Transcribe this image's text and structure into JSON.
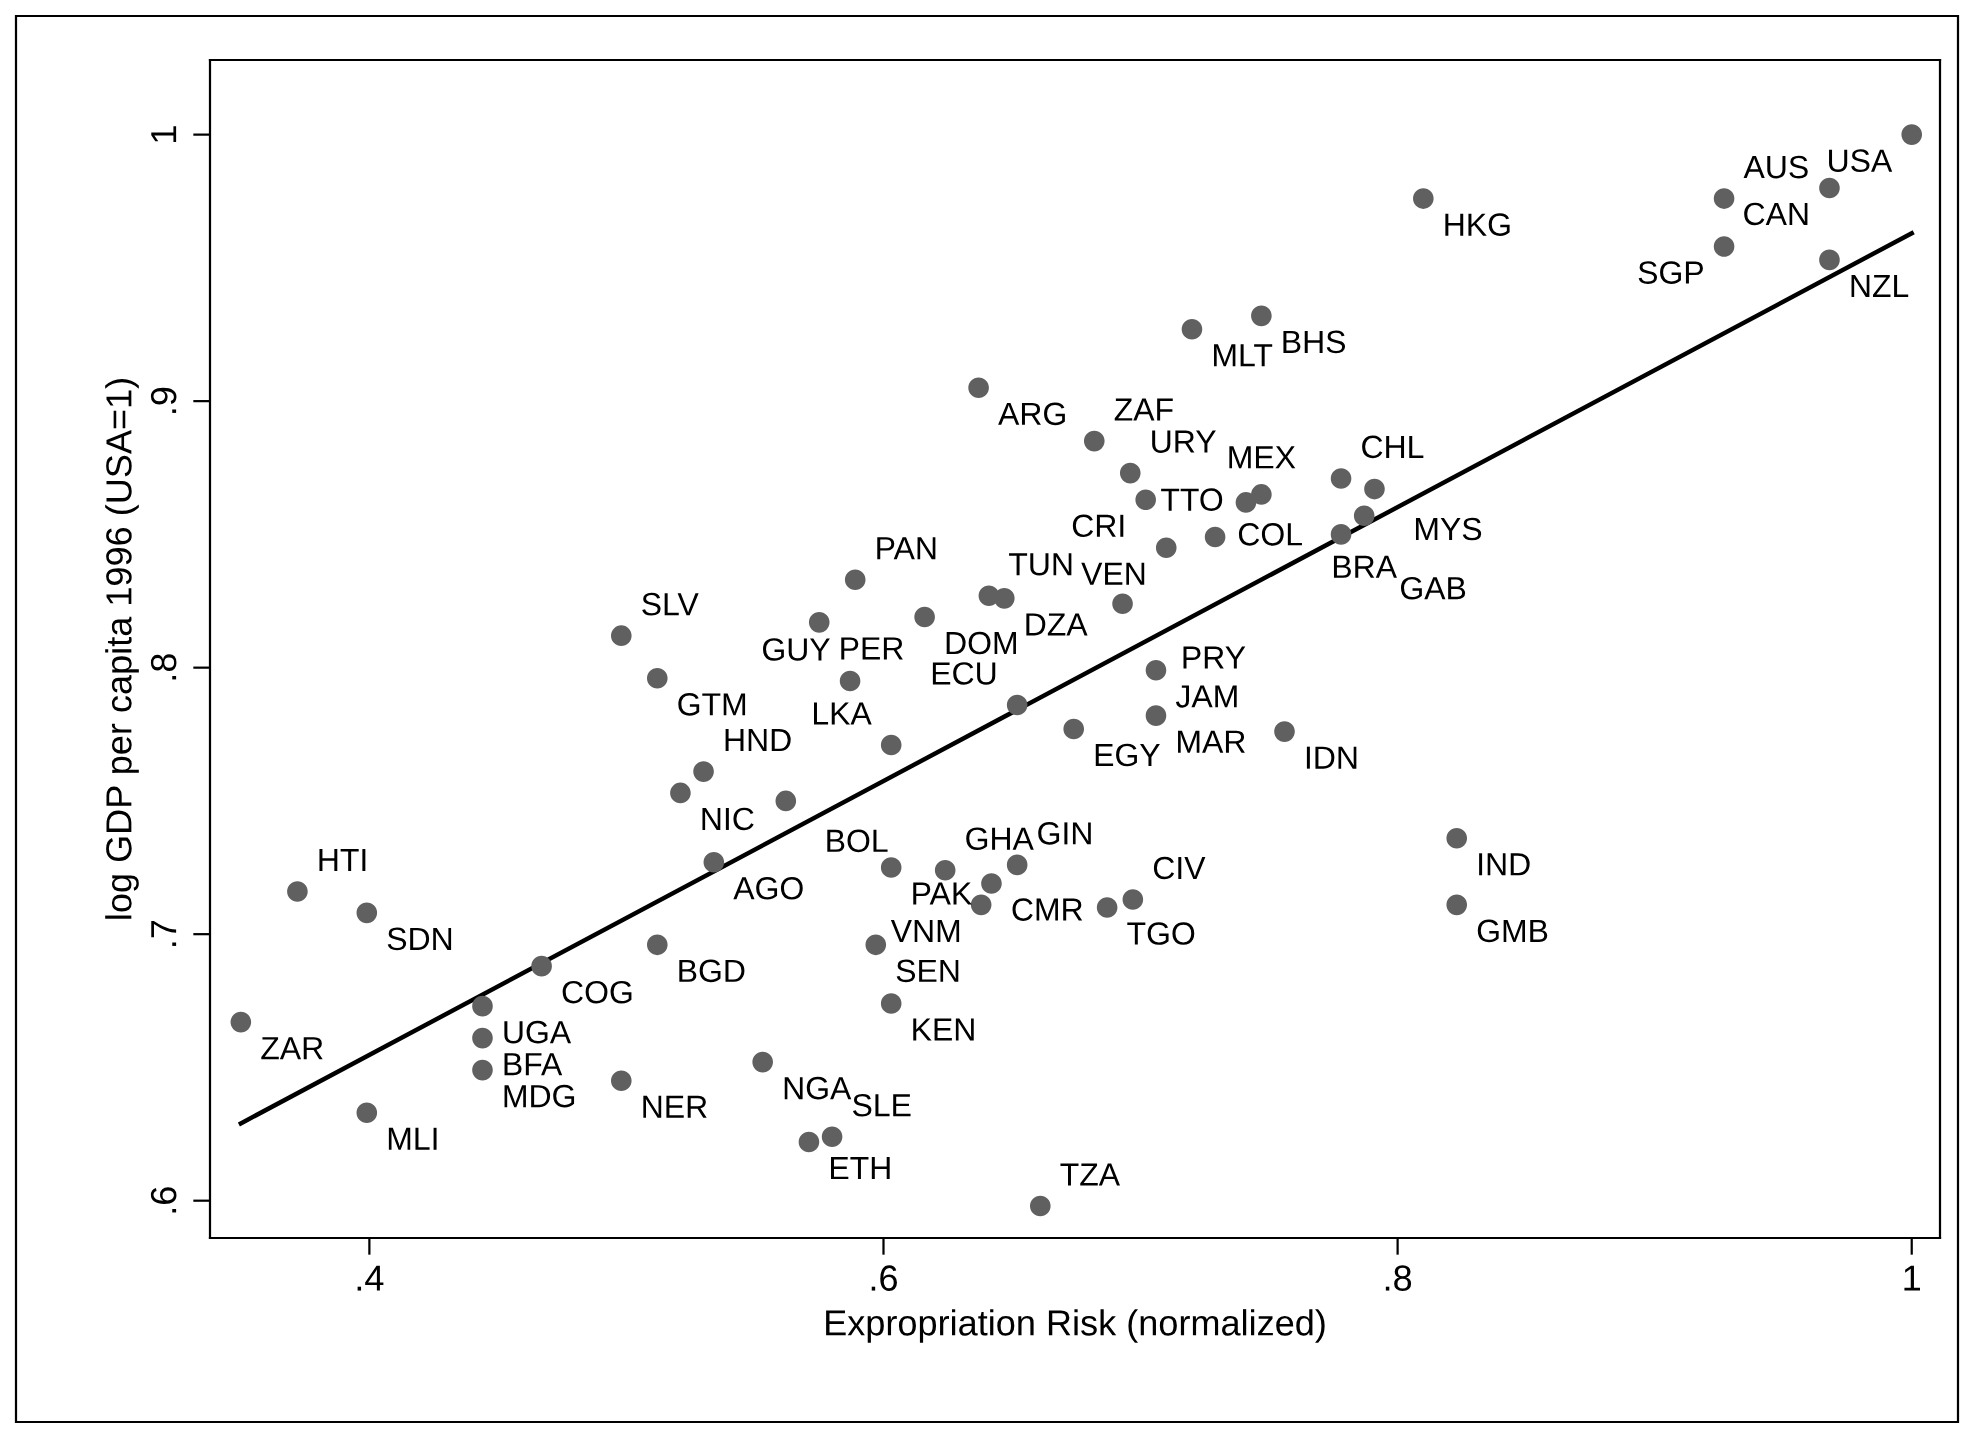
{
  "chart_data": {
    "type": "scatter",
    "xlabel": "Expropriation Risk (normalized)",
    "ylabel": "log GDP per capita 1996 (USA=1)",
    "xlim": [
      0.338,
      1.011
    ],
    "ylim": [
      0.586,
      1.028
    ],
    "xticks": [
      {
        "value": 0.4,
        "label": ".4"
      },
      {
        "value": 0.6,
        "label": ".6"
      },
      {
        "value": 0.8,
        "label": ".8"
      },
      {
        "value": 1,
        "label": "1"
      }
    ],
    "yticks": [
      {
        "value": 0.6,
        "label": ".6"
      },
      {
        "value": 0.7,
        "label": ".7"
      },
      {
        "value": 0.8,
        "label": ".8"
      },
      {
        "value": 0.9,
        "label": ".9"
      },
      {
        "value": 1,
        "label": "1"
      }
    ],
    "grid": false,
    "series": [
      {
        "marker": "circle",
        "color": "#606060",
        "x": [
          1.0,
          0.968,
          0.927,
          0.927,
          0.968,
          0.81,
          0.72,
          0.747,
          0.637,
          0.682,
          0.696,
          0.702,
          0.71,
          0.729,
          0.741,
          0.747,
          0.778,
          0.791,
          0.787,
          0.778,
          0.589,
          0.575,
          0.616,
          0.641,
          0.647,
          0.693,
          0.706,
          0.706,
          0.756,
          0.652,
          0.674,
          0.603,
          0.587,
          0.498,
          0.512,
          0.823,
          0.823,
          0.603,
          0.624,
          0.642,
          0.652,
          0.638,
          0.687,
          0.697,
          0.661,
          0.597,
          0.603,
          0.553,
          0.571,
          0.58,
          0.498,
          0.444,
          0.444,
          0.444,
          0.467,
          0.512,
          0.399,
          0.35,
          0.372,
          0.399,
          0.534,
          0.53,
          0.521,
          0.562
        ],
        "values": [
          1.0,
          0.98,
          0.976,
          0.958,
          0.953,
          0.976,
          0.927,
          0.932,
          0.905,
          0.885,
          0.873,
          0.863,
          0.845,
          0.849,
          0.862,
          0.865,
          0.871,
          0.867,
          0.857,
          0.85,
          0.833,
          0.817,
          0.819,
          0.827,
          0.826,
          0.824,
          0.799,
          0.782,
          0.776,
          0.786,
          0.777,
          0.771,
          0.795,
          0.812,
          0.796,
          0.736,
          0.711,
          0.725,
          0.724,
          0.719,
          0.726,
          0.711,
          0.71,
          0.713,
          0.598,
          0.696,
          0.674,
          0.652,
          0.622,
          0.624,
          0.645,
          0.649,
          0.661,
          0.673,
          0.688,
          0.696,
          0.633,
          0.667,
          0.716,
          0.708,
          0.727,
          0.761,
          0.753,
          0.75
        ]
      },
      {
        "type": "line",
        "color": "#000000",
        "x": [
          0.35,
          1.0
        ],
        "values": [
          0.629,
          0.963
        ]
      }
    ],
    "annotations": [
      {
        "text": "USA",
        "x": 1.0,
        "y": 1.0
      },
      {
        "text": "CAN",
        "x": 0.968,
        "y": 0.98
      },
      {
        "text": "AUS",
        "x": 0.927,
        "y": 0.976
      },
      {
        "text": "SGP",
        "x": 0.927,
        "y": 0.958
      },
      {
        "text": "NZL",
        "x": 0.968,
        "y": 0.953
      },
      {
        "text": "HKG",
        "x": 0.81,
        "y": 0.976
      },
      {
        "text": "MLT",
        "x": 0.72,
        "y": 0.927
      },
      {
        "text": "BHS",
        "x": 0.747,
        "y": 0.932
      },
      {
        "text": "ARG",
        "x": 0.637,
        "y": 0.905
      },
      {
        "text": "ZAF",
        "x": 0.682,
        "y": 0.885
      },
      {
        "text": "URY",
        "x": 0.696,
        "y": 0.873
      },
      {
        "text": "CRI",
        "x": 0.702,
        "y": 0.863
      },
      {
        "text": "VEN",
        "x": 0.71,
        "y": 0.845
      },
      {
        "text": "COL",
        "x": 0.729,
        "y": 0.849
      },
      {
        "text": "TTO",
        "x": 0.741,
        "y": 0.862
      },
      {
        "text": "MEX",
        "x": 0.747,
        "y": 0.865
      },
      {
        "text": "CHL",
        "x": 0.778,
        "y": 0.871
      },
      {
        "text": "MYS",
        "x": 0.791,
        "y": 0.867
      },
      {
        "text": "BRA",
        "x": 0.787,
        "y": 0.857
      },
      {
        "text": "GAB",
        "x": 0.778,
        "y": 0.85
      },
      {
        "text": "PAN",
        "x": 0.589,
        "y": 0.833
      },
      {
        "text": "PER",
        "x": 0.575,
        "y": 0.817
      },
      {
        "text": "DOM",
        "x": 0.616,
        "y": 0.819
      },
      {
        "text": "TUN",
        "x": 0.641,
        "y": 0.827
      },
      {
        "text": "DZA",
        "x": 0.647,
        "y": 0.826
      },
      {
        "text": "PRY",
        "x": 0.693,
        "y": 0.824
      },
      {
        "text": "JAM",
        "x": 0.706,
        "y": 0.799
      },
      {
        "text": "MAR",
        "x": 0.706,
        "y": 0.782
      },
      {
        "text": "IDN",
        "x": 0.756,
        "y": 0.776
      },
      {
        "text": "ECU",
        "x": 0.652,
        "y": 0.786
      },
      {
        "text": "EGY",
        "x": 0.674,
        "y": 0.777
      },
      {
        "text": "LKA",
        "x": 0.603,
        "y": 0.771
      },
      {
        "text": "GUY",
        "x": 0.587,
        "y": 0.795
      },
      {
        "text": "SLV",
        "x": 0.498,
        "y": 0.812
      },
      {
        "text": "GTM",
        "x": 0.512,
        "y": 0.796
      },
      {
        "text": "IND",
        "x": 0.823,
        "y": 0.736
      },
      {
        "text": "GMB",
        "x": 0.823,
        "y": 0.711
      },
      {
        "text": "PAK",
        "x": 0.603,
        "y": 0.725
      },
      {
        "text": "GHA",
        "x": 0.624,
        "y": 0.724
      },
      {
        "text": "CMR",
        "x": 0.642,
        "y": 0.719
      },
      {
        "text": "GIN",
        "x": 0.652,
        "y": 0.726
      },
      {
        "text": "VNM",
        "x": 0.638,
        "y": 0.711
      },
      {
        "text": "TGO",
        "x": 0.687,
        "y": 0.71
      },
      {
        "text": "CIV",
        "x": 0.697,
        "y": 0.713
      },
      {
        "text": "TZA",
        "x": 0.661,
        "y": 0.598
      },
      {
        "text": "SEN",
        "x": 0.597,
        "y": 0.696
      },
      {
        "text": "KEN",
        "x": 0.603,
        "y": 0.674
      },
      {
        "text": "NGA",
        "x": 0.553,
        "y": 0.652
      },
      {
        "text": "ETH",
        "x": 0.571,
        "y": 0.622
      },
      {
        "text": "SLE",
        "x": 0.58,
        "y": 0.624
      },
      {
        "text": "NER",
        "x": 0.498,
        "y": 0.645
      },
      {
        "text": "MDG",
        "x": 0.444,
        "y": 0.649
      },
      {
        "text": "BFA",
        "x": 0.444,
        "y": 0.661
      },
      {
        "text": "UGA",
        "x": 0.444,
        "y": 0.673
      },
      {
        "text": "COG",
        "x": 0.467,
        "y": 0.688
      },
      {
        "text": "BGD",
        "x": 0.512,
        "y": 0.696
      },
      {
        "text": "MLI",
        "x": 0.399,
        "y": 0.633
      },
      {
        "text": "ZAR",
        "x": 0.35,
        "y": 0.667
      },
      {
        "text": "HTI",
        "x": 0.372,
        "y": 0.716
      },
      {
        "text": "SDN",
        "x": 0.399,
        "y": 0.708
      },
      {
        "text": "AGO",
        "x": 0.534,
        "y": 0.727
      },
      {
        "text": "HND",
        "x": 0.53,
        "y": 0.761
      },
      {
        "text": "NIC",
        "x": 0.521,
        "y": 0.753
      },
      {
        "text": "BOL",
        "x": 0.562,
        "y": 0.75
      }
    ]
  }
}
